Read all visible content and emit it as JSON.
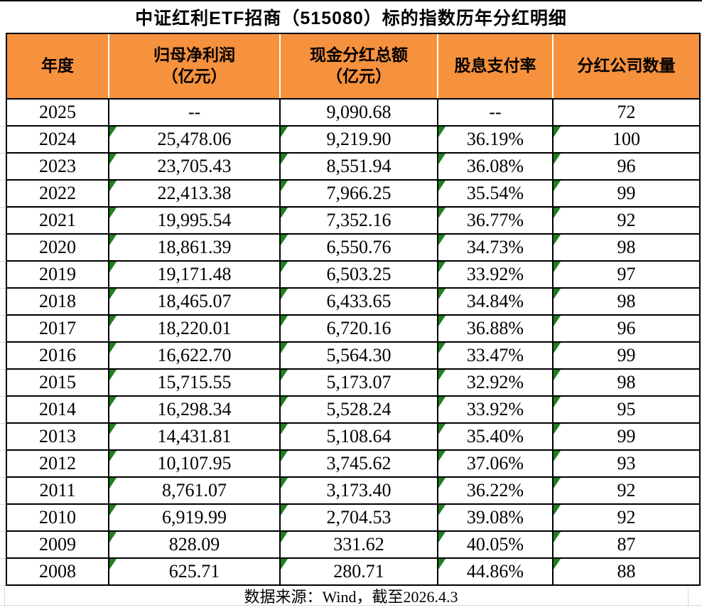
{
  "title": "中证红利ETF招商（515080）标的指数历年分红明细",
  "table": {
    "columns": [
      "年度",
      "归母净利润\n（亿元）",
      "现金分红总额\n（亿元）",
      "股息支付率",
      "分红公司数量"
    ],
    "rows": [
      {
        "cells": [
          "2025",
          "--",
          "9,090.68",
          "--",
          "72"
        ],
        "flagged": false
      },
      {
        "cells": [
          "2024",
          "25,478.06",
          "9,219.90",
          "36.19%",
          "100"
        ],
        "flagged": true
      },
      {
        "cells": [
          "2023",
          "23,705.43",
          "8,551.94",
          "36.08%",
          "96"
        ],
        "flagged": true
      },
      {
        "cells": [
          "2022",
          "22,413.38",
          "7,966.25",
          "35.54%",
          "99"
        ],
        "flagged": true
      },
      {
        "cells": [
          "2021",
          "19,995.54",
          "7,352.16",
          "36.77%",
          "92"
        ],
        "flagged": true
      },
      {
        "cells": [
          "2020",
          "18,861.39",
          "6,550.76",
          "34.73%",
          "98"
        ],
        "flagged": true
      },
      {
        "cells": [
          "2019",
          "19,171.48",
          "6,503.25",
          "33.92%",
          "97"
        ],
        "flagged": true
      },
      {
        "cells": [
          "2018",
          "18,465.07",
          "6,433.65",
          "34.84%",
          "98"
        ],
        "flagged": true
      },
      {
        "cells": [
          "2017",
          "18,220.01",
          "6,720.16",
          "36.88%",
          "96"
        ],
        "flagged": true
      },
      {
        "cells": [
          "2016",
          "16,622.70",
          "5,564.30",
          "33.47%",
          "99"
        ],
        "flagged": true
      },
      {
        "cells": [
          "2015",
          "15,715.55",
          "5,173.07",
          "32.92%",
          "98"
        ],
        "flagged": true
      },
      {
        "cells": [
          "2014",
          "16,298.34",
          "5,528.24",
          "33.92%",
          "95"
        ],
        "flagged": true
      },
      {
        "cells": [
          "2013",
          "14,431.81",
          "5,108.64",
          "35.40%",
          "99"
        ],
        "flagged": true
      },
      {
        "cells": [
          "2012",
          "10,107.95",
          "3,745.62",
          "37.06%",
          "93"
        ],
        "flagged": true
      },
      {
        "cells": [
          "2011",
          "8,761.07",
          "3,173.40",
          "36.22%",
          "92"
        ],
        "flagged": true
      },
      {
        "cells": [
          "2010",
          "6,919.99",
          "2,704.53",
          "39.08%",
          "92"
        ],
        "flagged": true
      },
      {
        "cells": [
          "2009",
          "828.09",
          "331.62",
          "40.05%",
          "87"
        ],
        "flagged": true
      },
      {
        "cells": [
          "2008",
          "625.71",
          "280.71",
          "44.86%",
          "88"
        ],
        "flagged": true
      }
    ]
  },
  "footer": {
    "source_note": "数据来源：Wind，截至2026.4.3"
  },
  "icons": {
    "flag": "excel-error-indicator-triangle"
  },
  "colors": {
    "header_bg": "#F6913E",
    "flag_green": "#1E7F1E",
    "table_border": "#000000",
    "gridline": "#D8D8D8",
    "text": "#000000",
    "header_separator": "#FFFFFF"
  }
}
